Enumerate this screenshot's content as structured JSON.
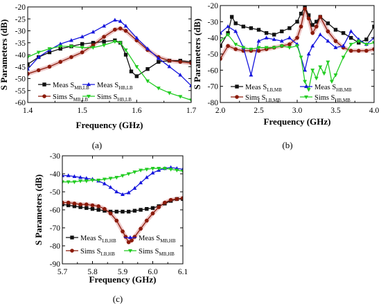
{
  "colors": {
    "meas_black": "#111111",
    "sims_red": "#8b1a0a",
    "meas_blue": "#1515dd",
    "sims_green": "#22cc22",
    "shade": "#e9bcbc"
  },
  "chart_data": [
    {
      "panel": "a",
      "type": "line",
      "caption": "(a)",
      "xlabel": "Frequency (GHz)",
      "ylabel": "S Parameters (dB)",
      "xlim": [
        1.4,
        1.7
      ],
      "ylim": [
        -60,
        -20
      ],
      "xticks": [
        "1.4",
        "1.5",
        "1.6",
        "1.7"
      ],
      "yticks": [
        "-60",
        "-55",
        "-50",
        "-45",
        "-40",
        "-35",
        "-30",
        "-25",
        "-20"
      ],
      "legend_position": "bottom-center",
      "series": [
        {
          "legend": {
            "prefix": "Meas S",
            "sub": "MB,LB"
          },
          "color_key": "meas_black",
          "marker": "square",
          "x": [
            1.4,
            1.42,
            1.44,
            1.46,
            1.48,
            1.5,
            1.52,
            1.54,
            1.56,
            1.57,
            1.58,
            1.59,
            1.6,
            1.62,
            1.64,
            1.66,
            1.68,
            1.7
          ],
          "y": [
            -44,
            -41,
            -39,
            -37.5,
            -36.5,
            -35.5,
            -35,
            -34.5,
            -34,
            -35,
            -40,
            -47,
            -49,
            -46,
            -43,
            -42.5,
            -42.5,
            -43
          ]
        },
        {
          "legend": {
            "prefix": "Sims S",
            "sub": "MB,LB"
          },
          "color_key": "sims_red",
          "marker": "circle",
          "x": [
            1.4,
            1.42,
            1.44,
            1.46,
            1.48,
            1.5,
            1.52,
            1.54,
            1.56,
            1.57,
            1.58,
            1.6,
            1.62,
            1.64,
            1.66,
            1.68,
            1.7
          ],
          "y": [
            -48,
            -46.5,
            -45,
            -43,
            -41,
            -39,
            -36,
            -32.5,
            -29.5,
            -29,
            -30,
            -34,
            -38,
            -41,
            -42.5,
            -43,
            -43.5
          ]
        },
        {
          "legend": {
            "prefix": "Meas S",
            "sub": "HB,LB"
          },
          "color_key": "meas_blue",
          "marker": "triangle-up",
          "x": [
            1.4,
            1.42,
            1.44,
            1.46,
            1.48,
            1.5,
            1.52,
            1.54,
            1.56,
            1.57,
            1.58,
            1.6,
            1.62,
            1.64,
            1.66,
            1.68,
            1.7
          ],
          "y": [
            -46,
            -41,
            -38,
            -35.5,
            -34,
            -32.5,
            -30.5,
            -28,
            -25.5,
            -26,
            -28,
            -33,
            -37.5,
            -41.5,
            -45,
            -48.5,
            -53
          ]
        },
        {
          "legend": {
            "prefix": "Sims S",
            "sub": "HB,LB"
          },
          "color_key": "sims_green",
          "marker": "triangle-down",
          "x": [
            1.4,
            1.42,
            1.44,
            1.46,
            1.48,
            1.5,
            1.52,
            1.54,
            1.56,
            1.57,
            1.58,
            1.6,
            1.62,
            1.64,
            1.66,
            1.68,
            1.7
          ],
          "y": [
            -41,
            -39,
            -37.5,
            -36.5,
            -36.5,
            -37,
            -37,
            -36,
            -34.5,
            -35,
            -38,
            -45,
            -51,
            -54,
            -56,
            -57.5,
            -59
          ]
        }
      ]
    },
    {
      "panel": "b",
      "type": "line",
      "caption": "(b)",
      "xlabel": "Frequency (GHz)",
      "ylabel": "S Parameters (dB)",
      "xlim": [
        2.0,
        4.0
      ],
      "ylim": [
        -80,
        -20
      ],
      "xticks": [
        "2.0",
        "2.5",
        "3.0",
        "3.5",
        "4.0"
      ],
      "yticks": [
        "-80",
        "-70",
        "-60",
        "-50",
        "-40",
        "-30",
        "-20"
      ],
      "legend_position": "bottom-center",
      "series": [
        {
          "legend": {
            "prefix": "Meas S",
            "sub": "LB,MB"
          },
          "color_key": "meas_black",
          "marker": "square",
          "x": [
            2.0,
            2.1,
            2.15,
            2.2,
            2.3,
            2.4,
            2.5,
            2.6,
            2.7,
            2.8,
            2.9,
            3.0,
            3.05,
            3.1,
            3.15,
            3.2,
            3.25,
            3.3,
            3.4,
            3.5,
            3.6,
            3.7,
            3.8,
            3.9,
            4.0
          ],
          "y": [
            -45,
            -37,
            -27,
            -31,
            -33,
            -34,
            -35,
            -37,
            -38,
            -36,
            -34,
            -30,
            -25,
            -21,
            -26,
            -32,
            -30,
            -27,
            -31,
            -35,
            -37,
            -40,
            -43,
            -41,
            -33
          ]
        },
        {
          "legend": {
            "prefix": "Sims S",
            "sub": "LB,MB"
          },
          "color_key": "sims_red",
          "marker": "circle",
          "x": [
            2.0,
            2.1,
            2.2,
            2.3,
            2.4,
            2.5,
            2.6,
            2.7,
            2.8,
            2.9,
            3.0,
            3.05,
            3.1,
            3.15,
            3.2,
            3.25,
            3.3,
            3.4,
            3.5,
            3.6,
            3.7,
            3.8,
            3.9,
            4.0
          ],
          "y": [
            -53,
            -45,
            -47,
            -48,
            -48,
            -48,
            -47,
            -46,
            -45,
            -44,
            -40,
            -33,
            -22,
            -28,
            -37,
            -33,
            -27,
            -36,
            -42,
            -46,
            -48,
            -48,
            -48,
            -47
          ]
        },
        {
          "legend": {
            "prefix": "Meas S",
            "sub": "HB,MB"
          },
          "color_key": "meas_blue",
          "marker": "triangle-up",
          "x": [
            2.0,
            2.1,
            2.2,
            2.3,
            2.4,
            2.5,
            2.6,
            2.7,
            2.8,
            2.9,
            3.0,
            3.1,
            3.15,
            3.2,
            3.3,
            3.4,
            3.5,
            3.6,
            3.7,
            3.8,
            3.9,
            4.0
          ],
          "y": [
            -37,
            -33,
            -36,
            -46,
            -63,
            -42,
            -40,
            -41,
            -42,
            -40,
            -44,
            -60,
            -50,
            -45,
            -38,
            -42,
            -46,
            -45,
            -36,
            -41,
            -44,
            -40
          ]
        },
        {
          "legend": {
            "prefix": "Sims S",
            "sub": "HB,MB"
          },
          "color_key": "sims_green",
          "marker": "triangle-down",
          "x": [
            2.0,
            2.1,
            2.2,
            2.3,
            2.4,
            2.5,
            2.6,
            2.7,
            2.8,
            2.9,
            3.0,
            3.05,
            3.1,
            3.15,
            3.2,
            3.25,
            3.3,
            3.35,
            3.4,
            3.45,
            3.5,
            3.6,
            3.7,
            3.8,
            3.9,
            4.0
          ],
          "y": [
            -42,
            -38,
            -44,
            -46,
            -47,
            -46,
            -46,
            -46,
            -45,
            -46,
            -45,
            -52,
            -67,
            -72,
            -60,
            -65,
            -58,
            -62,
            -55,
            -67,
            -63,
            -52,
            -44,
            -42,
            -44,
            -43
          ]
        }
      ]
    },
    {
      "panel": "c",
      "type": "line",
      "caption": "(c)",
      "xlabel": "Frequency (GHz)",
      "ylabel": "S Parameters (dB)",
      "xlim": [
        5.7,
        6.1
      ],
      "ylim": [
        -90,
        -30
      ],
      "xticks": [
        "5.7",
        "5.8",
        "5.9",
        "6.0",
        "6.1"
      ],
      "yticks": [
        "-90",
        "-80",
        "-70",
        "-60",
        "-50",
        "-40",
        "-30"
      ],
      "legend_position": "bottom-center",
      "series": [
        {
          "legend": {
            "prefix": "Meas S",
            "sub": "LB,HB"
          },
          "color_key": "meas_black",
          "marker": "square",
          "x": [
            5.7,
            5.72,
            5.74,
            5.76,
            5.78,
            5.8,
            5.82,
            5.84,
            5.86,
            5.88,
            5.9,
            5.92,
            5.94,
            5.96,
            5.98,
            6.0,
            6.02,
            6.04,
            6.06,
            6.08,
            6.1
          ],
          "y": [
            -57,
            -57.5,
            -58,
            -58.5,
            -59,
            -59.5,
            -60,
            -60.5,
            -61,
            -61,
            -61,
            -61,
            -60.5,
            -60,
            -59.5,
            -59,
            -58,
            -56.5,
            -55,
            -54,
            -54
          ]
        },
        {
          "legend": {
            "prefix": "Sims S",
            "sub": "LB,HB"
          },
          "color_key": "sims_red",
          "marker": "circle",
          "x": [
            5.7,
            5.72,
            5.74,
            5.76,
            5.78,
            5.8,
            5.82,
            5.84,
            5.86,
            5.88,
            5.9,
            5.91,
            5.92,
            5.93,
            5.94,
            5.96,
            5.98,
            6.0,
            6.02,
            6.04,
            6.06,
            6.08,
            6.1
          ],
          "y": [
            -56,
            -56,
            -56.5,
            -57,
            -57,
            -57.5,
            -58,
            -59.5,
            -62,
            -66,
            -72,
            -75,
            -78,
            -77,
            -75,
            -70.5,
            -66,
            -62,
            -58.5,
            -56,
            -54.5,
            -54,
            -53.5
          ]
        },
        {
          "legend": {
            "prefix": "Meas S",
            "sub": "MB,HB"
          },
          "color_key": "meas_blue",
          "marker": "triangle-up",
          "x": [
            5.7,
            5.72,
            5.74,
            5.76,
            5.78,
            5.8,
            5.82,
            5.84,
            5.86,
            5.88,
            5.9,
            5.92,
            5.94,
            5.96,
            5.98,
            6.0,
            6.02,
            6.04,
            6.06,
            6.08,
            6.1
          ],
          "y": [
            -41,
            -41,
            -41.5,
            -42,
            -42.5,
            -43,
            -44,
            -45.5,
            -47.5,
            -50,
            -51.5,
            -50.5,
            -48,
            -45,
            -42,
            -39.5,
            -38,
            -37,
            -36.5,
            -37,
            -37.5
          ]
        },
        {
          "legend": {
            "prefix": "Sims S",
            "sub": "MB,HB"
          },
          "color_key": "sims_green",
          "marker": "triangle-down",
          "x": [
            5.7,
            5.72,
            5.74,
            5.76,
            5.78,
            5.8,
            5.82,
            5.84,
            5.86,
            5.88,
            5.9,
            5.92,
            5.94,
            5.96,
            5.98,
            6.0,
            6.02,
            6.04,
            6.06,
            6.08,
            6.1
          ],
          "y": [
            -44.5,
            -44.5,
            -44.5,
            -44,
            -44,
            -43.5,
            -43.5,
            -43,
            -42.5,
            -42,
            -41,
            -40,
            -39,
            -38,
            -37.5,
            -37,
            -37,
            -37,
            -37.5,
            -38,
            -38.5
          ]
        }
      ]
    }
  ]
}
